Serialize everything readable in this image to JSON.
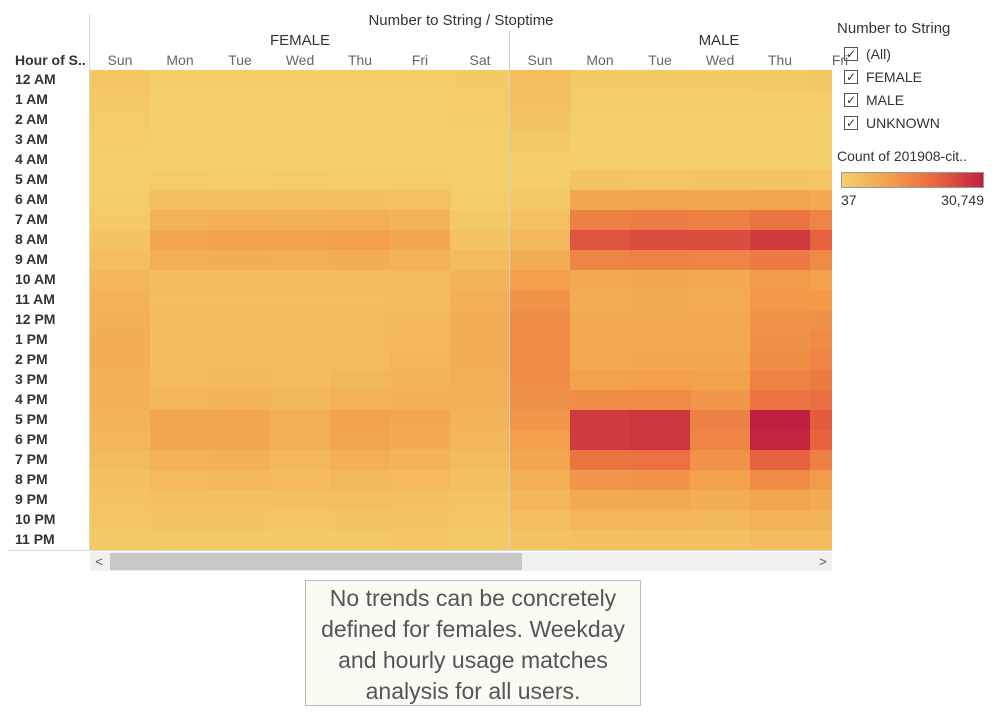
{
  "title": "Number to String / Stoptime",
  "row_header": "Hour of S..",
  "legend": {
    "title": "Number to String",
    "items": [
      {
        "label": "(All)",
        "checked": true
      },
      {
        "label": "FEMALE",
        "checked": true
      },
      {
        "label": "MALE",
        "checked": true
      },
      {
        "label": "UNKNOWN",
        "checked": true
      }
    ]
  },
  "color_legend": {
    "title": "Count of 201908-cit..",
    "min_label": "37",
    "max_label": "30,749",
    "colors": [
      "#f4d06a",
      "#f3a04c",
      "#e9663f",
      "#c0203f"
    ]
  },
  "scrollbar": {
    "left_arrow": "<",
    "right_arrow": ">"
  },
  "annotation": "No trends can be concretely defined for females. Weekday and hourly usage matches analysis for all users.",
  "chart_data": {
    "type": "heatmap",
    "title": "Number to String / Stoptime",
    "row_label": "Hour of S..",
    "value_label": "Count of 201908-cit..",
    "value_range": [
      37,
      30749
    ],
    "rows": [
      "12 AM",
      "1 AM",
      "2 AM",
      "3 AM",
      "4 AM",
      "5 AM",
      "6 AM",
      "7 AM",
      "8 AM",
      "9 AM",
      "10 AM",
      "11 AM",
      "12 PM",
      "1 PM",
      "2 PM",
      "3 PM",
      "4 PM",
      "5 PM",
      "6 PM",
      "7 PM",
      "8 PM",
      "9 PM",
      "10 PM",
      "11 PM"
    ],
    "groups": [
      {
        "name": "FEMALE",
        "columns": [
          "Sun",
          "Mon",
          "Tue",
          "Wed",
          "Thu",
          "Fri",
          "Sat"
        ],
        "values": [
          [
            2200,
            700,
            650,
            700,
            750,
            800,
            1400
          ],
          [
            1500,
            300,
            280,
            300,
            330,
            380,
            1000
          ],
          [
            1000,
            150,
            140,
            150,
            170,
            200,
            700
          ],
          [
            600,
            100,
            90,
            100,
            110,
            130,
            450
          ],
          [
            350,
            150,
            140,
            150,
            160,
            170,
            300
          ],
          [
            300,
            900,
            850,
            900,
            880,
            800,
            350
          ],
          [
            700,
            3500,
            3400,
            3500,
            3400,
            3000,
            800
          ],
          [
            1500,
            6500,
            6800,
            6600,
            7000,
            6000,
            1800
          ],
          [
            2500,
            9500,
            10000,
            9800,
            10500,
            8800,
            3000
          ],
          [
            4000,
            7000,
            7200,
            7000,
            7300,
            6500,
            4500
          ],
          [
            5500,
            4200,
            4300,
            4200,
            4500,
            4600,
            6000
          ],
          [
            6500,
            3800,
            3900,
            3800,
            4100,
            4300,
            7000
          ],
          [
            7000,
            4200,
            4300,
            4200,
            4600,
            4900,
            7500
          ],
          [
            7200,
            4300,
            4400,
            4200,
            4700,
            5100,
            7500
          ],
          [
            7200,
            4400,
            4500,
            4200,
            4800,
            5400,
            7300
          ],
          [
            7000,
            4800,
            4900,
            4500,
            5300,
            6000,
            7000
          ],
          [
            6800,
            5800,
            6000,
            5300,
            6400,
            6800,
            6700
          ],
          [
            6300,
            9000,
            9300,
            7000,
            9700,
            8800,
            6200
          ],
          [
            5500,
            9000,
            9200,
            6800,
            9500,
            8200,
            5600
          ],
          [
            4500,
            6500,
            6700,
            5200,
            7000,
            6100,
            4600
          ],
          [
            3500,
            4800,
            5000,
            4200,
            5200,
            4700,
            3700
          ],
          [
            2800,
            3400,
            3500,
            3300,
            3800,
            3500,
            2900
          ],
          [
            2000,
            2500,
            2600,
            2400,
            2800,
            2700,
            2200
          ],
          [
            1300,
            1600,
            1700,
            1600,
            1800,
            2000,
            1600
          ]
        ]
      },
      {
        "name": "MALE",
        "columns": [
          "Sun",
          "Mon",
          "Tue",
          "Wed",
          "Thu",
          "Fri"
        ],
        "values": [
          [
            4000,
            1500,
            1400,
            1500,
            1700,
            1900
          ],
          [
            3200,
            700,
            650,
            700,
            800,
            1000
          ],
          [
            2500,
            350,
            330,
            350,
            400,
            500
          ],
          [
            1800,
            200,
            190,
            200,
            230,
            280
          ],
          [
            900,
            400,
            380,
            400,
            420,
            420
          ],
          [
            700,
            2500,
            2400,
            2500,
            2500,
            2200
          ],
          [
            1600,
            9000,
            9200,
            9000,
            9500,
            8500
          ],
          [
            3000,
            16000,
            16500,
            16000,
            18000,
            15000
          ],
          [
            5000,
            23000,
            24000,
            24000,
            27000,
            21000
          ],
          [
            7500,
            15000,
            15500,
            15000,
            17000,
            14000
          ],
          [
            10500,
            8500,
            8800,
            8500,
            11000,
            10000
          ],
          [
            12500,
            7800,
            8000,
            7800,
            11500,
            11500
          ],
          [
            13500,
            8300,
            8400,
            8500,
            12500,
            13000
          ],
          [
            14000,
            8400,
            8500,
            8600,
            13000,
            14000
          ],
          [
            14000,
            8500,
            8800,
            8800,
            13500,
            15000
          ],
          [
            13500,
            10000,
            10500,
            10000,
            15500,
            17000
          ],
          [
            13000,
            13500,
            14000,
            12000,
            18000,
            19000
          ],
          [
            12000,
            27000,
            27500,
            16000,
            30749,
            22000
          ],
          [
            10500,
            27000,
            27500,
            15000,
            30000,
            21000
          ],
          [
            9000,
            18000,
            18500,
            12500,
            21000,
            16000
          ],
          [
            7000,
            12000,
            12500,
            10000,
            14000,
            11000
          ],
          [
            5500,
            8000,
            8300,
            7500,
            9500,
            8000
          ],
          [
            4000,
            5500,
            5700,
            5300,
            6500,
            6000
          ],
          [
            2500,
            3500,
            3700,
            3500,
            4200,
            4500
          ]
        ]
      }
    ]
  }
}
